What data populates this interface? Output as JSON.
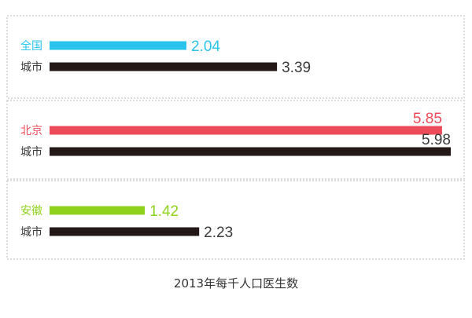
{
  "chart_data": {
    "type": "bar",
    "orientation": "horizontal",
    "title": "2013年每千人口医生数",
    "xlim": [
      0,
      5.98
    ],
    "grid": false,
    "groups": [
      {
        "bars": [
          {
            "label": "全国",
            "value": 2.04,
            "value_text": "2.04",
            "color": "#29c3ec"
          },
          {
            "label": "城市",
            "value": 3.39,
            "value_text": "3.39",
            "color": "#231815"
          }
        ]
      },
      {
        "bars": [
          {
            "label": "北京",
            "value": 5.85,
            "value_text": "5.85",
            "color": "#ee4b5a"
          },
          {
            "label": "城市",
            "value": 5.98,
            "value_text": "5.98",
            "color": "#231815"
          }
        ]
      },
      {
        "bars": [
          {
            "label": "安徽",
            "value": 1.42,
            "value_text": "1.42",
            "color": "#8fd21c"
          },
          {
            "label": "城市",
            "value": 2.23,
            "value_text": "2.23",
            "color": "#231815"
          }
        ]
      }
    ]
  },
  "colors": {
    "dark_label": "#3a3a3a",
    "box_border": "#b9b9b9"
  }
}
